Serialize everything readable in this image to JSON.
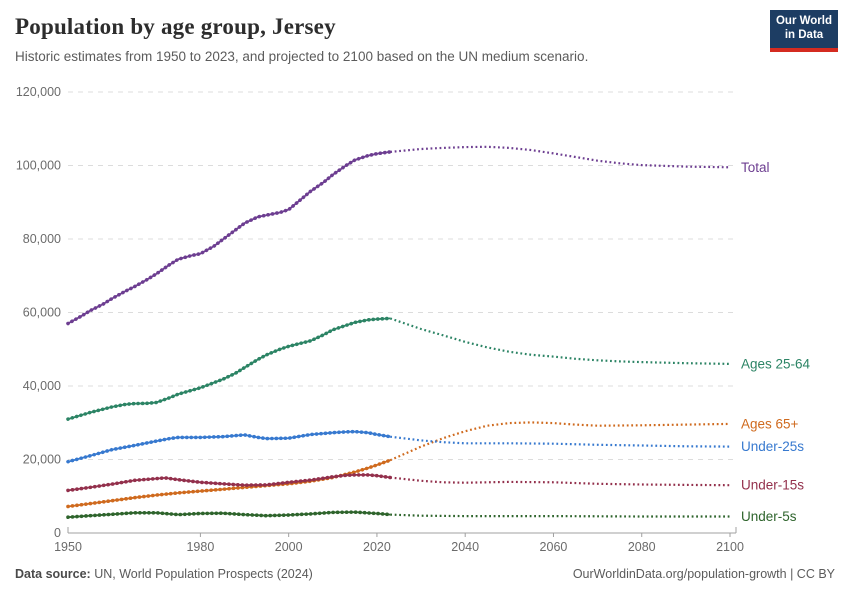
{
  "header": {
    "title": "Population by age group, Jersey",
    "subtitle": "Historic estimates from 1950 to 2023, and projected to 2100 based on the UN medium scenario.",
    "logo": {
      "line1": "Our World",
      "line2": "in Data",
      "bg_color": "#1d3d63",
      "stripe_color": "#d42b20"
    }
  },
  "footer": {
    "source_label": "Data source:",
    "source_text": " UN, World Population Prospects (2024)",
    "link": "OurWorldinData.org/population-growth | CC BY"
  },
  "chart_data": {
    "type": "line",
    "title": "Population by age group, Jersey",
    "xlabel": "",
    "ylabel": "",
    "xlim": [
      1950,
      2100
    ],
    "ylim": [
      0,
      120000
    ],
    "x_ticks": [
      1950,
      1980,
      2000,
      2020,
      2040,
      2060,
      2080,
      2100
    ],
    "y_ticks": [
      0,
      20000,
      40000,
      60000,
      80000,
      100000,
      120000
    ],
    "grid": "horizontal-dashed",
    "legend_position": "right-end-labels",
    "projection_start": 2023,
    "style": {
      "grid_color": "#dcdcdc",
      "axis_color": "#a0a0a0",
      "tick_label_color": "#6b6b6b"
    },
    "series": [
      {
        "name": "Total",
        "color": "#6d3e91",
        "historic": [
          [
            1950,
            57000
          ],
          [
            1953,
            59000
          ],
          [
            1955,
            60500
          ],
          [
            1958,
            62300
          ],
          [
            1960,
            63800
          ],
          [
            1963,
            65800
          ],
          [
            1965,
            67000
          ],
          [
            1968,
            69000
          ],
          [
            1970,
            70500
          ],
          [
            1973,
            73000
          ],
          [
            1975,
            74500
          ],
          [
            1978,
            75500
          ],
          [
            1980,
            76000
          ],
          [
            1983,
            78000
          ],
          [
            1985,
            79800
          ],
          [
            1988,
            82500
          ],
          [
            1990,
            84300
          ],
          [
            1993,
            86000
          ],
          [
            1995,
            86500
          ],
          [
            1998,
            87200
          ],
          [
            2000,
            88000
          ],
          [
            2003,
            91000
          ],
          [
            2005,
            93000
          ],
          [
            2008,
            95500
          ],
          [
            2010,
            97500
          ],
          [
            2013,
            100000
          ],
          [
            2015,
            101500
          ],
          [
            2018,
            102700
          ],
          [
            2020,
            103200
          ],
          [
            2023,
            103700
          ]
        ],
        "projection": [
          [
            2023,
            103700
          ],
          [
            2030,
            104500
          ],
          [
            2035,
            104800
          ],
          [
            2040,
            105000
          ],
          [
            2045,
            105100
          ],
          [
            2050,
            104800
          ],
          [
            2055,
            104200
          ],
          [
            2060,
            103300
          ],
          [
            2065,
            102300
          ],
          [
            2070,
            101300
          ],
          [
            2075,
            100600
          ],
          [
            2080,
            100100
          ],
          [
            2090,
            99700
          ],
          [
            2100,
            99500
          ]
        ]
      },
      {
        "name": "Ages 25-64",
        "color": "#2c8465",
        "historic": [
          [
            1950,
            31000
          ],
          [
            1955,
            32800
          ],
          [
            1960,
            34300
          ],
          [
            1963,
            35000
          ],
          [
            1965,
            35200
          ],
          [
            1968,
            35300
          ],
          [
            1970,
            35500
          ],
          [
            1973,
            36800
          ],
          [
            1975,
            37800
          ],
          [
            1980,
            39500
          ],
          [
            1985,
            41800
          ],
          [
            1988,
            43500
          ],
          [
            1990,
            45000
          ],
          [
            1993,
            47200
          ],
          [
            1995,
            48500
          ],
          [
            1998,
            50000
          ],
          [
            2000,
            50800
          ],
          [
            2005,
            52300
          ],
          [
            2008,
            54000
          ],
          [
            2010,
            55300
          ],
          [
            2013,
            56500
          ],
          [
            2015,
            57300
          ],
          [
            2018,
            58000
          ],
          [
            2020,
            58200
          ],
          [
            2023,
            58400
          ]
        ],
        "projection": [
          [
            2023,
            58400
          ],
          [
            2030,
            55500
          ],
          [
            2035,
            53800
          ],
          [
            2040,
            52000
          ],
          [
            2045,
            50500
          ],
          [
            2050,
            49300
          ],
          [
            2055,
            48500
          ],
          [
            2060,
            48000
          ],
          [
            2065,
            47400
          ],
          [
            2070,
            47000
          ],
          [
            2075,
            46700
          ],
          [
            2080,
            46500
          ],
          [
            2090,
            46200
          ],
          [
            2100,
            46000
          ]
        ]
      },
      {
        "name": "Ages 65+",
        "color": "#cf6a1e",
        "historic": [
          [
            1950,
            7200
          ],
          [
            1955,
            8000
          ],
          [
            1960,
            8800
          ],
          [
            1965,
            9600
          ],
          [
            1970,
            10300
          ],
          [
            1975,
            10900
          ],
          [
            1980,
            11400
          ],
          [
            1985,
            11900
          ],
          [
            1990,
            12400
          ],
          [
            1995,
            12900
          ],
          [
            2000,
            13400
          ],
          [
            2005,
            14100
          ],
          [
            2010,
            15100
          ],
          [
            2015,
            16600
          ],
          [
            2018,
            17700
          ],
          [
            2020,
            18500
          ],
          [
            2023,
            19800
          ]
        ],
        "projection": [
          [
            2023,
            19800
          ],
          [
            2030,
            23500
          ],
          [
            2035,
            25800
          ],
          [
            2040,
            27700
          ],
          [
            2045,
            29200
          ],
          [
            2050,
            29900
          ],
          [
            2055,
            30100
          ],
          [
            2060,
            29900
          ],
          [
            2065,
            29500
          ],
          [
            2070,
            29200
          ],
          [
            2080,
            29300
          ],
          [
            2090,
            29500
          ],
          [
            2100,
            29700
          ]
        ]
      },
      {
        "name": "Under-25s",
        "color": "#3779cf",
        "historic": [
          [
            1950,
            19400
          ],
          [
            1955,
            21000
          ],
          [
            1960,
            22700
          ],
          [
            1965,
            23800
          ],
          [
            1970,
            25000
          ],
          [
            1973,
            25700
          ],
          [
            1975,
            26000
          ],
          [
            1980,
            26000
          ],
          [
            1985,
            26200
          ],
          [
            1988,
            26500
          ],
          [
            1990,
            26700
          ],
          [
            1993,
            26000
          ],
          [
            1995,
            25700
          ],
          [
            2000,
            25800
          ],
          [
            2005,
            26800
          ],
          [
            2010,
            27300
          ],
          [
            2013,
            27500
          ],
          [
            2015,
            27600
          ],
          [
            2018,
            27300
          ],
          [
            2020,
            26800
          ],
          [
            2023,
            26200
          ]
        ],
        "projection": [
          [
            2023,
            26200
          ],
          [
            2030,
            25200
          ],
          [
            2035,
            24700
          ],
          [
            2040,
            24400
          ],
          [
            2050,
            24400
          ],
          [
            2060,
            24300
          ],
          [
            2070,
            24000
          ],
          [
            2080,
            23800
          ],
          [
            2090,
            23600
          ],
          [
            2100,
            23500
          ]
        ]
      },
      {
        "name": "Under-15s",
        "color": "#93304c",
        "historic": [
          [
            1950,
            11600
          ],
          [
            1955,
            12400
          ],
          [
            1960,
            13300
          ],
          [
            1965,
            14300
          ],
          [
            1970,
            14800
          ],
          [
            1972,
            15000
          ],
          [
            1975,
            14500
          ],
          [
            1980,
            13800
          ],
          [
            1985,
            13400
          ],
          [
            1990,
            13000
          ],
          [
            1995,
            13100
          ],
          [
            2000,
            13800
          ],
          [
            2005,
            14400
          ],
          [
            2010,
            15300
          ],
          [
            2013,
            15700
          ],
          [
            2015,
            15800
          ],
          [
            2018,
            15800
          ],
          [
            2020,
            15600
          ],
          [
            2023,
            15100
          ]
        ],
        "projection": [
          [
            2023,
            15100
          ],
          [
            2030,
            14200
          ],
          [
            2035,
            13800
          ],
          [
            2040,
            13700
          ],
          [
            2045,
            13800
          ],
          [
            2050,
            13900
          ],
          [
            2060,
            13800
          ],
          [
            2070,
            13400
          ],
          [
            2080,
            13200
          ],
          [
            2090,
            13100
          ],
          [
            2100,
            13000
          ]
        ]
      },
      {
        "name": "Under-5s",
        "color": "#2e642c",
        "historic": [
          [
            1950,
            4300
          ],
          [
            1955,
            4700
          ],
          [
            1960,
            5100
          ],
          [
            1965,
            5500
          ],
          [
            1970,
            5500
          ],
          [
            1975,
            5000
          ],
          [
            1980,
            5300
          ],
          [
            1985,
            5400
          ],
          [
            1990,
            5000
          ],
          [
            1995,
            4700
          ],
          [
            2000,
            4900
          ],
          [
            2005,
            5200
          ],
          [
            2010,
            5600
          ],
          [
            2015,
            5700
          ],
          [
            2020,
            5300
          ],
          [
            2023,
            5000
          ]
        ],
        "projection": [
          [
            2023,
            5000
          ],
          [
            2030,
            4700
          ],
          [
            2040,
            4600
          ],
          [
            2060,
            4600
          ],
          [
            2080,
            4500
          ],
          [
            2100,
            4500
          ]
        ]
      }
    ]
  }
}
